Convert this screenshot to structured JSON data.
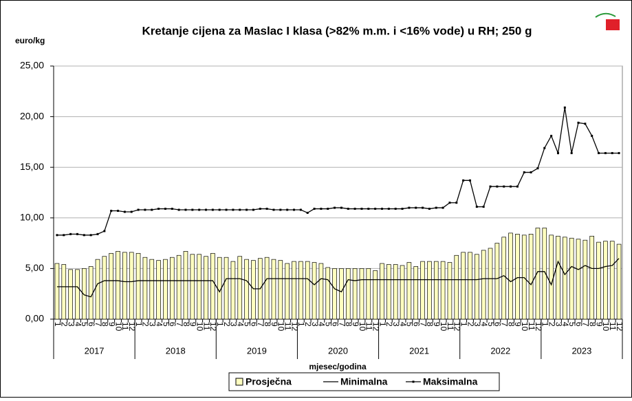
{
  "chart_data": {
    "type": "bar_line",
    "title": "Kretanje cijena za Maslac I klasa (>82% m.m. i <16% vode) u RH; 250 g",
    "y_axis_label": "euro/kg",
    "x_axis_label": "mjesec/godina",
    "categories": [
      "1",
      "2",
      "3",
      "4",
      "5",
      "6",
      "7",
      "8",
      "9",
      "10",
      "11",
      "12",
      "1",
      "2",
      "3",
      "4",
      "5",
      "6",
      "7",
      "8",
      "9",
      "10",
      "11",
      "12",
      "1",
      "2",
      "3",
      "4",
      "5",
      "6",
      "7",
      "8",
      "9",
      "10",
      "11",
      "12",
      "1",
      "2",
      "3",
      "4",
      "5",
      "6",
      "7",
      "8",
      "9",
      "10",
      "11",
      "12",
      "1",
      "2",
      "3",
      "4",
      "5",
      "6",
      "7",
      "8",
      "9",
      "10",
      "11",
      "12",
      "1",
      "2",
      "3",
      "4",
      "5",
      "6",
      "7",
      "8",
      "9",
      "10",
      "11",
      "12",
      "1",
      "2",
      "3",
      "4",
      "5",
      "6",
      "7",
      "8",
      "9",
      "10",
      "11",
      "12"
    ],
    "year_groups": [
      "2017",
      "2018",
      "2019",
      "2020",
      "2021",
      "2022",
      "2023"
    ],
    "ylim": [
      0,
      25
    ],
    "yticks": [
      {
        "value": 0,
        "label": "0,00"
      },
      {
        "value": 5,
        "label": "5,00"
      },
      {
        "value": 10,
        "label": "10,00"
      },
      {
        "value": 15,
        "label": "15,00"
      },
      {
        "value": 20,
        "label": "20,00"
      },
      {
        "value": 25,
        "label": "25,00"
      }
    ],
    "grid": true,
    "legend": "bottom",
    "series": [
      {
        "name": "Prosječna",
        "kind": "bar",
        "color": "#ffffc0",
        "values": [
          5.5,
          5.4,
          4.9,
          4.9,
          5.0,
          5.2,
          5.9,
          6.2,
          6.5,
          6.7,
          6.6,
          6.6,
          6.5,
          6.1,
          5.9,
          5.8,
          5.9,
          6.1,
          6.3,
          6.7,
          6.4,
          6.4,
          6.2,
          6.5,
          6.1,
          6.1,
          5.7,
          6.2,
          5.9,
          5.8,
          6.0,
          6.1,
          5.9,
          5.8,
          5.5,
          5.7,
          5.7,
          5.7,
          5.6,
          5.5,
          5.1,
          5.0,
          5.0,
          5.0,
          5.0,
          5.0,
          5.0,
          4.8,
          5.5,
          5.4,
          5.4,
          5.3,
          5.6,
          5.2,
          5.7,
          5.7,
          5.7,
          5.7,
          5.6,
          6.3,
          6.6,
          6.6,
          6.4,
          6.8,
          7.0,
          7.5,
          8.1,
          8.5,
          8.4,
          8.3,
          8.4,
          9.0,
          9.0,
          8.3,
          8.2,
          8.1,
          8.0,
          7.9,
          7.8,
          8.2,
          7.6,
          7.7,
          7.7,
          7.4
        ]
      },
      {
        "name": "Minimalna",
        "kind": "line",
        "color": "#000000",
        "values": [
          3.2,
          3.2,
          3.2,
          3.2,
          2.4,
          2.2,
          3.5,
          3.8,
          3.8,
          3.8,
          3.7,
          3.7,
          3.8,
          3.8,
          3.8,
          3.8,
          3.8,
          3.8,
          3.8,
          3.8,
          3.8,
          3.8,
          3.8,
          3.8,
          2.7,
          4.0,
          4.0,
          4.0,
          3.8,
          3.0,
          3.0,
          4.0,
          4.0,
          4.0,
          4.0,
          4.0,
          4.0,
          4.0,
          3.4,
          4.0,
          3.9,
          3.0,
          2.7,
          3.9,
          3.8,
          3.9,
          3.9,
          3.9,
          3.9,
          3.9,
          3.9,
          3.9,
          3.9,
          3.9,
          3.9,
          3.9,
          3.9,
          3.9,
          3.9,
          3.9,
          3.9,
          3.9,
          3.9,
          4.0,
          4.0,
          4.0,
          4.3,
          3.7,
          4.1,
          4.1,
          3.4,
          4.7,
          4.7,
          3.4,
          5.7,
          4.4,
          5.2,
          4.9,
          5.3,
          5.0,
          5.0,
          5.2,
          5.3,
          6.0
        ]
      },
      {
        "name": "Maksimalna",
        "kind": "line",
        "markers": true,
        "color": "#000000",
        "values": [
          8.3,
          8.3,
          8.4,
          8.4,
          8.3,
          8.3,
          8.4,
          8.7,
          10.7,
          10.7,
          10.6,
          10.6,
          10.8,
          10.8,
          10.8,
          10.9,
          10.9,
          10.9,
          10.8,
          10.8,
          10.8,
          10.8,
          10.8,
          10.8,
          10.8,
          10.8,
          10.8,
          10.8,
          10.8,
          10.8,
          10.9,
          10.9,
          10.8,
          10.8,
          10.8,
          10.8,
          10.8,
          10.5,
          10.9,
          10.9,
          10.9,
          11.0,
          11.0,
          10.9,
          10.9,
          10.9,
          10.9,
          10.9,
          10.9,
          10.9,
          10.9,
          10.9,
          11.0,
          11.0,
          11.0,
          10.9,
          11.0,
          11.0,
          11.5,
          11.5,
          13.7,
          13.7,
          11.1,
          11.1,
          13.1,
          13.1,
          13.1,
          13.1,
          13.1,
          14.5,
          14.5,
          14.9,
          16.9,
          18.1,
          16.4,
          20.9,
          16.4,
          19.4,
          19.3,
          18.1,
          16.4,
          16.4,
          16.4,
          16.4
        ]
      }
    ]
  }
}
